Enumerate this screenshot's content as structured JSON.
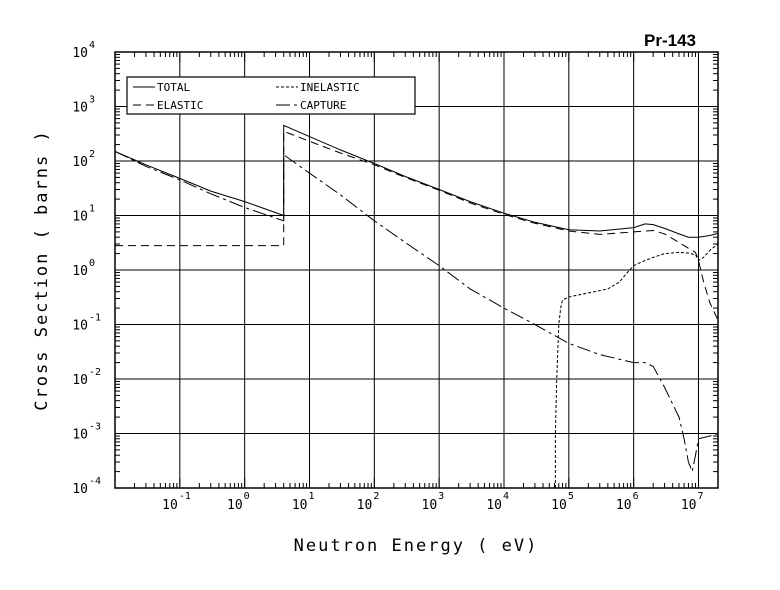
{
  "chart_data": {
    "type": "line",
    "title": "Pr-143",
    "xlabel": "Neutron Energy ( eV)",
    "ylabel": "Cross Section ( barns )",
    "x_scale": "log",
    "y_scale": "log",
    "xlim": [
      0.01,
      20000000
    ],
    "ylim": [
      0.0001,
      10000
    ],
    "grid": true,
    "legend_position": "top-left",
    "x_ticks": [
      {
        "base": "10",
        "exp": "-1",
        "value": 0.1
      },
      {
        "base": "10",
        "exp": "0",
        "value": 1
      },
      {
        "base": "10",
        "exp": "1",
        "value": 10
      },
      {
        "base": "10",
        "exp": "2",
        "value": 100
      },
      {
        "base": "10",
        "exp": "3",
        "value": 1000
      },
      {
        "base": "10",
        "exp": "4",
        "value": 10000
      },
      {
        "base": "10",
        "exp": "5",
        "value": 100000
      },
      {
        "base": "10",
        "exp": "6",
        "value": 1000000
      },
      {
        "base": "10",
        "exp": "7",
        "value": 10000000
      }
    ],
    "y_ticks": [
      {
        "base": "10",
        "exp": "-4",
        "value": 0.0001
      },
      {
        "base": "10",
        "exp": "-3",
        "value": 0.001
      },
      {
        "base": "10",
        "exp": "-2",
        "value": 0.01
      },
      {
        "base": "10",
        "exp": "-1",
        "value": 0.1
      },
      {
        "base": "10",
        "exp": "0",
        "value": 1
      },
      {
        "base": "10",
        "exp": "1",
        "value": 10
      },
      {
        "base": "10",
        "exp": "2",
        "value": 100
      },
      {
        "base": "10",
        "exp": "3",
        "value": 1000
      },
      {
        "base": "10",
        "exp": "4",
        "value": 10000
      }
    ],
    "series": [
      {
        "name": "TOTAL",
        "dash": "none",
        "x": [
          0.01,
          0.03,
          0.1,
          0.3,
          1,
          4,
          4,
          10,
          30,
          100,
          300,
          1000,
          3000,
          10000,
          30000,
          100000,
          300000,
          1000000,
          1500000,
          2000000,
          3000000,
          5000000,
          7000000,
          10000000,
          15000000,
          20000000
        ],
        "y": [
          150,
          85,
          48,
          28,
          18,
          10,
          450,
          280,
          160,
          90,
          52,
          30,
          18,
          11,
          7.5,
          5.5,
          5.2,
          6.0,
          7.0,
          6.8,
          5.8,
          4.6,
          4.0,
          4.0,
          4.3,
          4.7
        ]
      },
      {
        "name": "ELASTIC",
        "dash": "8,5",
        "x": [
          0.01,
          1,
          4,
          4,
          10,
          30,
          100,
          300,
          1000,
          3000,
          10000,
          30000,
          100000,
          300000,
          1000000,
          2000000,
          3000000,
          5000000,
          6000000,
          7000000,
          8000000,
          9000000,
          10000000,
          12000000,
          15000000,
          20000000
        ],
        "y": [
          2.8,
          2.8,
          2.8,
          350,
          230,
          140,
          85,
          50,
          29,
          17,
          10.5,
          7.2,
          5.2,
          4.5,
          5.0,
          5.3,
          4.6,
          3.2,
          2.8,
          2.5,
          2.3,
          2.1,
          1.5,
          0.6,
          0.25,
          0.12
        ]
      },
      {
        "name": "INELASTIC",
        "dash": "3,2",
        "x": [
          62000,
          62000,
          65000,
          70000,
          75000,
          80000,
          100000,
          200000,
          400000,
          600000,
          800000,
          1000000,
          1500000,
          2000000,
          3000000,
          5000000,
          7000000,
          9000000,
          10000000,
          12000000,
          15000000,
          20000000
        ],
        "y": [
          0.0001,
          0.001,
          0.01,
          0.1,
          0.2,
          0.28,
          0.32,
          0.38,
          0.45,
          0.6,
          0.9,
          1.2,
          1.5,
          1.7,
          2.0,
          2.1,
          2.05,
          1.9,
          1.5,
          1.7,
          2.3,
          3.0
        ]
      },
      {
        "name": "CAPTURE",
        "dash": "14,4,3,4",
        "x": [
          0.01,
          0.03,
          0.1,
          0.3,
          1,
          4,
          4,
          10,
          30,
          100,
          300,
          1000,
          3000,
          10000,
          30000,
          100000,
          300000,
          1000000,
          1500000,
          2000000,
          3000000,
          5000000,
          6000000,
          7000000,
          8000000,
          9000000,
          10000000,
          15000000,
          20000000
        ],
        "y": [
          150,
          80,
          45,
          25,
          14,
          8,
          130,
          60,
          24,
          8,
          3.2,
          1.2,
          0.45,
          0.2,
          0.1,
          0.045,
          0.028,
          0.02,
          0.02,
          0.017,
          0.007,
          0.002,
          0.0008,
          0.0003,
          0.0002,
          0.0004,
          0.0008,
          0.0009,
          0.001
        ]
      }
    ]
  }
}
